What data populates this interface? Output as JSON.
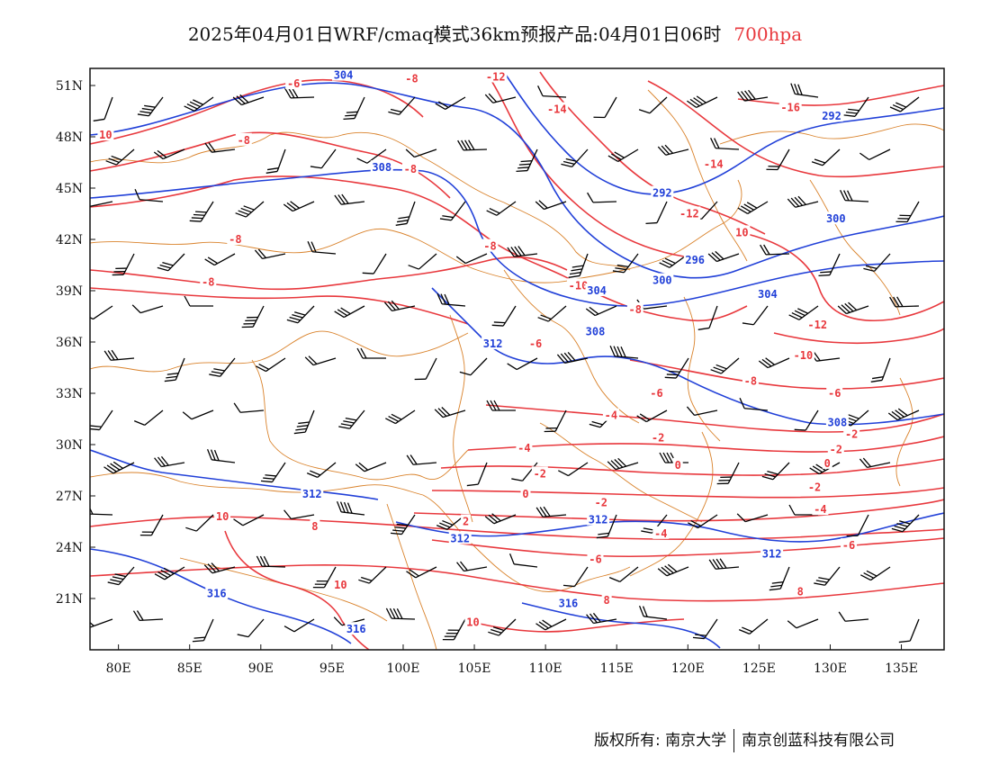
{
  "title": {
    "main": "2025年04月01日WRF/cmaq模式36km预报产品:04月01日06时",
    "level": "700hpa"
  },
  "colors": {
    "temperature_contour": "#e8383d",
    "height_contour": "#2140d8",
    "boundary": "#d9822b",
    "wind_barb": "#000000"
  },
  "map": {
    "x_axis_labels": [
      "80E",
      "85E",
      "90E",
      "95E",
      "100E",
      "105E",
      "110E",
      "115E",
      "120E",
      "125E",
      "130E",
      "135E"
    ],
    "x_axis_values": [
      80,
      85,
      90,
      95,
      100,
      105,
      110,
      115,
      120,
      125,
      130,
      135
    ],
    "y_axis_labels": [
      "21N",
      "24N",
      "27N",
      "30N",
      "33N",
      "36N",
      "39N",
      "42N",
      "45N",
      "48N",
      "51N"
    ],
    "y_axis_values": [
      21,
      24,
      27,
      30,
      33,
      36,
      39,
      42,
      45,
      48,
      51
    ],
    "lon_range": [
      78,
      138
    ],
    "lat_range": [
      18,
      52
    ],
    "temperature_labels": [
      {
        "text": "-6",
        "lon": 92.3,
        "lat": 51.1
      },
      {
        "text": "-8",
        "lon": 100.6,
        "lat": 51.4
      },
      {
        "text": "-12",
        "lon": 106.5,
        "lat": 51.5
      },
      {
        "text": "-14",
        "lon": 110.8,
        "lat": 49.6
      },
      {
        "text": "-16",
        "lon": 127.2,
        "lat": 49.7
      },
      {
        "text": "10",
        "lon": 79.1,
        "lat": 48.1
      },
      {
        "text": "-8",
        "lon": 88.8,
        "lat": 47.8
      },
      {
        "text": "-8",
        "lon": 100.5,
        "lat": 46.1
      },
      {
        "text": "-14",
        "lon": 121.8,
        "lat": 46.4
      },
      {
        "text": "-12",
        "lon": 120.1,
        "lat": 43.5
      },
      {
        "text": "10",
        "lon": 123.8,
        "lat": 42.4
      },
      {
        "text": "-8",
        "lon": 88.2,
        "lat": 42.0
      },
      {
        "text": "-8",
        "lon": 106.1,
        "lat": 41.6
      },
      {
        "text": "-8",
        "lon": 86.3,
        "lat": 39.5
      },
      {
        "text": "-10",
        "lon": 112.3,
        "lat": 39.3
      },
      {
        "text": "-8",
        "lon": 116.3,
        "lat": 37.9
      },
      {
        "text": "-12",
        "lon": 129.1,
        "lat": 37.0
      },
      {
        "text": "-10",
        "lon": 128.1,
        "lat": 35.2
      },
      {
        "text": "-8",
        "lon": 124.4,
        "lat": 33.7
      },
      {
        "text": "-6",
        "lon": 109.3,
        "lat": 35.9
      },
      {
        "text": "-6",
        "lon": 117.8,
        "lat": 33.0
      },
      {
        "text": "-6",
        "lon": 130.3,
        "lat": 33.0
      },
      {
        "text": "-4",
        "lon": 114.6,
        "lat": 31.7
      },
      {
        "text": "-2",
        "lon": 131.5,
        "lat": 30.6
      },
      {
        "text": "-4",
        "lon": 108.5,
        "lat": 29.8
      },
      {
        "text": "-2",
        "lon": 117.9,
        "lat": 30.4
      },
      {
        "text": "-2",
        "lon": 130.4,
        "lat": 29.7
      },
      {
        "text": "-2",
        "lon": 109.6,
        "lat": 28.3
      },
      {
        "text": "0",
        "lon": 119.3,
        "lat": 28.8
      },
      {
        "text": "0",
        "lon": 129.8,
        "lat": 28.9
      },
      {
        "text": "0",
        "lon": 108.6,
        "lat": 27.1
      },
      {
        "text": "-2",
        "lon": 128.9,
        "lat": 27.5
      },
      {
        "text": "-2",
        "lon": 113.9,
        "lat": 26.6
      },
      {
        "text": "-4",
        "lon": 129.3,
        "lat": 26.2
      },
      {
        "text": "10",
        "lon": 87.3,
        "lat": 25.8
      },
      {
        "text": "8",
        "lon": 93.8,
        "lat": 25.2
      },
      {
        "text": "2",
        "lon": 104.4,
        "lat": 25.5
      },
      {
        "text": "-4",
        "lon": 118.1,
        "lat": 24.8
      },
      {
        "text": "-6",
        "lon": 131.3,
        "lat": 24.1
      },
      {
        "text": "-6",
        "lon": 113.5,
        "lat": 23.3
      },
      {
        "text": "10",
        "lon": 95.6,
        "lat": 21.8
      },
      {
        "text": "8",
        "lon": 127.9,
        "lat": 21.4
      },
      {
        "text": "8",
        "lon": 114.3,
        "lat": 20.9
      },
      {
        "text": "10",
        "lon": 104.9,
        "lat": 19.6
      }
    ],
    "height_labels": [
      {
        "text": "304",
        "lon": 95.8,
        "lat": 51.6
      },
      {
        "text": "292",
        "lon": 130.1,
        "lat": 49.2
      },
      {
        "text": "308",
        "lon": 98.5,
        "lat": 46.2
      },
      {
        "text": "292",
        "lon": 118.2,
        "lat": 44.7
      },
      {
        "text": "300",
        "lon": 130.4,
        "lat": 43.2
      },
      {
        "text": "296",
        "lon": 120.5,
        "lat": 40.8
      },
      {
        "text": "300",
        "lon": 118.2,
        "lat": 39.6
      },
      {
        "text": "304",
        "lon": 113.6,
        "lat": 39.0
      },
      {
        "text": "304",
        "lon": 125.6,
        "lat": 38.8
      },
      {
        "text": "308",
        "lon": 113.5,
        "lat": 36.6
      },
      {
        "text": "312",
        "lon": 106.3,
        "lat": 35.9
      },
      {
        "text": "308",
        "lon": 130.5,
        "lat": 31.3
      },
      {
        "text": "312",
        "lon": 93.6,
        "lat": 27.1
      },
      {
        "text": "312",
        "lon": 113.7,
        "lat": 25.6
      },
      {
        "text": "312",
        "lon": 104.0,
        "lat": 24.5
      },
      {
        "text": "312",
        "lon": 125.9,
        "lat": 23.6
      },
      {
        "text": "316",
        "lon": 86.9,
        "lat": 21.3
      },
      {
        "text": "316",
        "lon": 111.6,
        "lat": 20.7
      },
      {
        "text": "316",
        "lon": 96.7,
        "lat": 19.2
      }
    ]
  },
  "copyright": {
    "left": "版权所有: 南京大学",
    "right": "南京创蓝科技有限公司"
  }
}
